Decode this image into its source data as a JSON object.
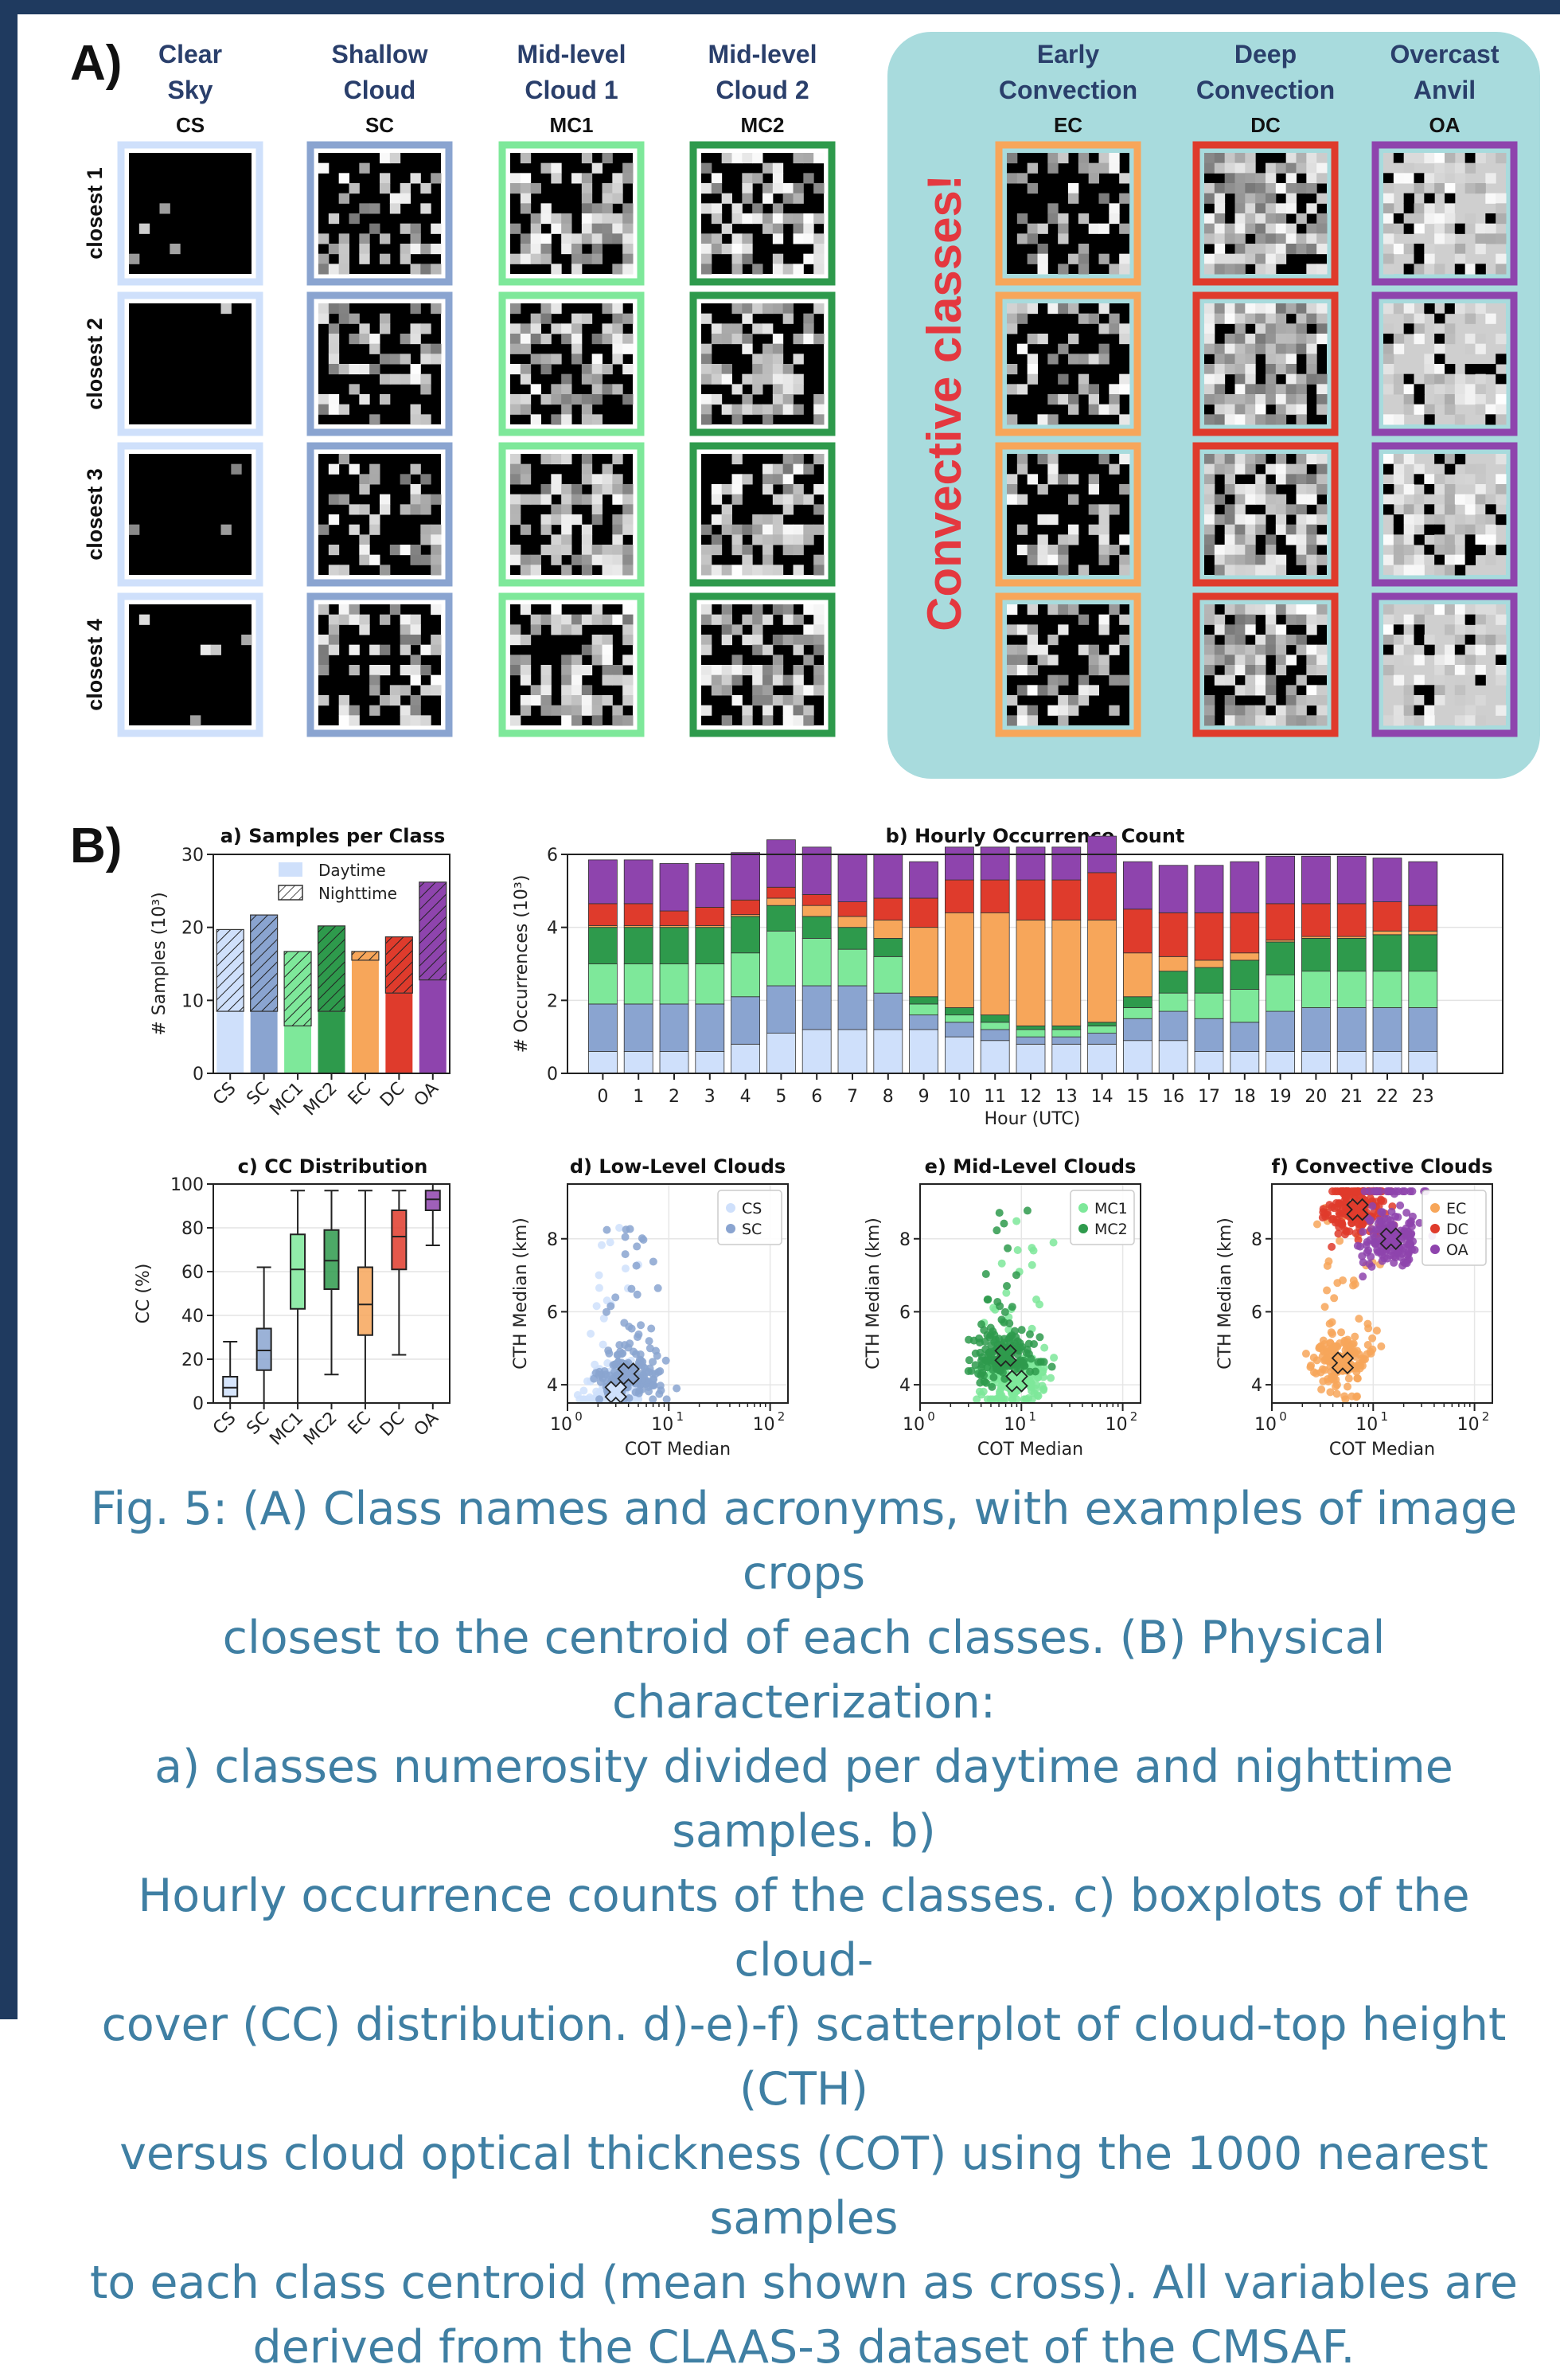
{
  "panelA": {
    "label": "A)",
    "convective_label": "Convective classes!",
    "rows": [
      "closest 1",
      "closest 2",
      "closest 3",
      "closest 4"
    ],
    "classes": [
      {
        "name1": "Clear",
        "name2": "Sky",
        "code": "CS",
        "color": "#cfe0fb"
      },
      {
        "name1": "Shallow",
        "name2": "Cloud",
        "code": "SC",
        "color": "#8aa4d0"
      },
      {
        "name1": "Mid-level",
        "name2": "Cloud 1",
        "code": "MC1",
        "color": "#7ee89a"
      },
      {
        "name1": "Mid-level",
        "name2": "Cloud 2",
        "code": "MC2",
        "color": "#2e9a4c"
      },
      {
        "name1": "Early",
        "name2": "Convection",
        "code": "EC",
        "color": "#f7a65a"
      },
      {
        "name1": "Deep",
        "name2": "Convection",
        "code": "DC",
        "color": "#df3b2c"
      },
      {
        "name1": "Overcast",
        "name2": "Anvil",
        "code": "OA",
        "color": "#8e44ad"
      }
    ]
  },
  "panelB": {
    "label": "B)"
  },
  "chart_data": [
    {
      "id": "a",
      "type": "bar",
      "title": "a) Samples per Class",
      "ylabel": "# Samples (10³)",
      "ylim": [
        0,
        30
      ],
      "yticks": [
        0,
        10,
        20,
        30
      ],
      "categories": [
        "CS",
        "SC",
        "MC1",
        "MC2",
        "EC",
        "DC",
        "OA"
      ],
      "series": [
        {
          "name": "Daytime",
          "values": [
            8.5,
            8.5,
            6.5,
            8.5,
            15.5,
            11.0,
            12.8
          ]
        },
        {
          "name": "Nighttime",
          "values": [
            11.2,
            13.2,
            10.2,
            11.7,
            1.2,
            7.7,
            13.4
          ]
        }
      ],
      "legend_position": "top-right"
    },
    {
      "id": "b",
      "type": "bar",
      "title": "b) Hourly Occurrence Count",
      "xlabel": "Hour (UTC)",
      "ylabel": "# Occurrences (10³)",
      "ylim": [
        0,
        6
      ],
      "yticks": [
        0,
        2,
        4,
        6
      ],
      "categories": [
        "0",
        "1",
        "2",
        "3",
        "4",
        "5",
        "6",
        "7",
        "8",
        "9",
        "10",
        "11",
        "12",
        "13",
        "14",
        "15",
        "16",
        "17",
        "18",
        "19",
        "20",
        "21",
        "22",
        "23"
      ],
      "series": [
        {
          "name": "CS",
          "values": [
            0.6,
            0.6,
            0.6,
            0.6,
            0.8,
            1.1,
            1.2,
            1.2,
            1.2,
            1.2,
            1.0,
            0.9,
            0.8,
            0.8,
            0.8,
            0.9,
            0.9,
            0.6,
            0.6,
            0.6,
            0.6,
            0.6,
            0.6,
            0.6
          ]
        },
        {
          "name": "SC",
          "values": [
            1.3,
            1.3,
            1.3,
            1.3,
            1.3,
            1.3,
            1.2,
            1.2,
            1.0,
            0.4,
            0.4,
            0.3,
            0.2,
            0.2,
            0.3,
            0.6,
            0.8,
            0.9,
            0.8,
            1.1,
            1.2,
            1.2,
            1.2,
            1.2
          ]
        },
        {
          "name": "MC1",
          "values": [
            1.1,
            1.1,
            1.1,
            1.1,
            1.2,
            1.5,
            1.3,
            1.0,
            1.0,
            0.3,
            0.2,
            0.2,
            0.2,
            0.2,
            0.2,
            0.3,
            0.5,
            0.7,
            0.9,
            1.0,
            1.0,
            1.0,
            1.0,
            1.0
          ]
        },
        {
          "name": "MC2",
          "values": [
            1.0,
            1.0,
            1.0,
            1.0,
            1.0,
            0.7,
            0.6,
            0.6,
            0.5,
            0.2,
            0.2,
            0.2,
            0.1,
            0.1,
            0.1,
            0.3,
            0.6,
            0.7,
            0.8,
            0.9,
            0.9,
            0.9,
            1.0,
            1.0
          ]
        },
        {
          "name": "EC",
          "values": [
            0.05,
            0.05,
            0.05,
            0.05,
            0.05,
            0.2,
            0.3,
            0.3,
            0.5,
            1.9,
            2.6,
            2.8,
            2.9,
            2.9,
            2.8,
            1.2,
            0.4,
            0.2,
            0.2,
            0.05,
            0.05,
            0.05,
            0.1,
            0.1
          ]
        },
        {
          "name": "DC",
          "values": [
            0.6,
            0.6,
            0.4,
            0.5,
            0.4,
            0.3,
            0.3,
            0.4,
            0.6,
            0.8,
            0.9,
            0.9,
            1.1,
            1.1,
            1.3,
            1.2,
            1.2,
            1.3,
            1.1,
            1.0,
            0.9,
            0.9,
            0.8,
            0.7
          ]
        },
        {
          "name": "OA",
          "values": [
            1.2,
            1.2,
            1.3,
            1.2,
            1.3,
            1.3,
            1.3,
            1.3,
            1.2,
            1.0,
            0.9,
            0.9,
            0.9,
            0.9,
            1.0,
            1.3,
            1.3,
            1.3,
            1.4,
            1.3,
            1.3,
            1.3,
            1.2,
            1.2
          ]
        }
      ]
    },
    {
      "id": "c",
      "type": "box",
      "title": "c) CC Distribution",
      "ylabel": "CC (%)",
      "ylim": [
        0,
        100
      ],
      "yticks": [
        0,
        20,
        40,
        60,
        80,
        100
      ],
      "categories": [
        "CS",
        "SC",
        "MC1",
        "MC2",
        "EC",
        "DC",
        "OA"
      ],
      "boxes": [
        {
          "whislo": 0,
          "q1": 3,
          "med": 7,
          "q3": 12,
          "whishi": 28
        },
        {
          "whislo": 0,
          "q1": 15,
          "med": 24,
          "q3": 34,
          "whishi": 62
        },
        {
          "whislo": 0,
          "q1": 43,
          "med": 61,
          "q3": 77,
          "whishi": 97
        },
        {
          "whislo": 13,
          "q1": 52,
          "med": 65,
          "q3": 79,
          "whishi": 97
        },
        {
          "whislo": 0,
          "q1": 31,
          "med": 45,
          "q3": 62,
          "whishi": 97
        },
        {
          "whislo": 22,
          "q1": 61,
          "med": 76,
          "q3": 88,
          "whishi": 97
        },
        {
          "whislo": 72,
          "q1": 88,
          "med": 93,
          "q3": 97,
          "whishi": 100
        }
      ]
    },
    {
      "id": "d",
      "type": "scatter",
      "title": "d) Low-Level Clouds",
      "xlabel": "COT Median",
      "ylabel": "CTH Median (km)",
      "xscale": "log",
      "xlim": [
        1,
        150
      ],
      "ylim": [
        3.5,
        9.5
      ],
      "yticks": [
        4,
        6,
        8
      ],
      "series": [
        {
          "name": "CS",
          "means": [
            3,
            3.8
          ],
          "cloud": {
            "xmin": 1,
            "xmax": 5,
            "ymin": 3.6,
            "ymax": 9.3
          }
        },
        {
          "name": "SC",
          "means": [
            4,
            4.3
          ],
          "cloud": {
            "xmin": 1,
            "xmax": 12,
            "ymin": 3.6,
            "ymax": 9.3
          }
        }
      ]
    },
    {
      "id": "e",
      "type": "scatter",
      "title": "e) Mid-Level Clouds",
      "xlabel": "COT Median",
      "ylabel": "CTH Median (km)",
      "xscale": "log",
      "xlim": [
        1,
        150
      ],
      "ylim": [
        3.5,
        9.5
      ],
      "yticks": [
        4,
        6,
        8
      ],
      "series": [
        {
          "name": "MC1",
          "means": [
            9,
            4.1
          ],
          "cloud": {
            "xmin": 2,
            "xmax": 50,
            "ymin": 3.6,
            "ymax": 9.3
          }
        },
        {
          "name": "MC2",
          "means": [
            7,
            4.8
          ],
          "cloud": {
            "xmin": 1.5,
            "xmax": 30,
            "ymin": 3.6,
            "ymax": 9.3
          }
        }
      ]
    },
    {
      "id": "f",
      "type": "scatter",
      "title": "f) Convective Clouds",
      "xlabel": "COT Median",
      "ylabel": "CTH Median (km)",
      "xscale": "log",
      "xlim": [
        1,
        150
      ],
      "ylim": [
        3.5,
        9.5
      ],
      "yticks": [
        4,
        6,
        8
      ],
      "series": [
        {
          "name": "EC",
          "means": [
            5,
            4.6
          ],
          "cloud": {
            "xmin": 1,
            "xmax": 12,
            "ymin": 3.6,
            "ymax": 9.3
          }
        },
        {
          "name": "DC",
          "means": [
            7,
            8.8
          ],
          "cloud": {
            "xmin": 2,
            "xmax": 40,
            "ymin": 5.5,
            "ymax": 9.3
          }
        },
        {
          "name": "OA",
          "means": [
            15,
            8.0
          ],
          "cloud": {
            "xmin": 4,
            "xmax": 100,
            "ymin": 4.3,
            "ymax": 9.3
          }
        }
      ]
    }
  ],
  "caption": {
    "lines": [
      "Fig. 5: (A) Class names and acronyms, with examples of image crops",
      "closest to the centroid of each classes. (B) Physical characterization:",
      "a) classes numerosity divided per daytime and nighttime samples. b)",
      "Hourly occurrence counts of the classes. c) boxplots of the cloud-",
      "cover (CC) distribution. d)-e)-f) scatterplot of cloud-top height (CTH)",
      "versus cloud optical thickness (COT) using the 1000 nearest samples",
      "to each class centroid (mean shown as cross). All variables are",
      "derived from the CLAAS-3 dataset of the CMSAF."
    ]
  }
}
